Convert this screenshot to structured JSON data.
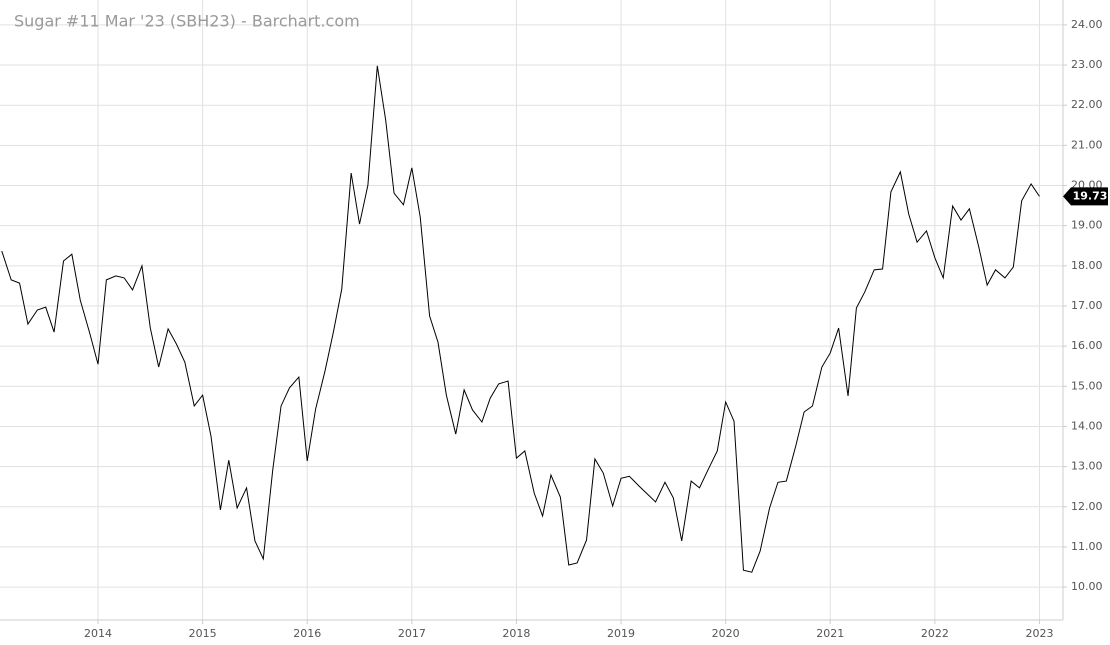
{
  "chart_data": {
    "type": "line",
    "title": "Sugar #11 Mar '23 (SBH23) - Barchart.com",
    "color": "#000000",
    "grid": true,
    "xlim": [
      2013.063,
      2023.225
    ],
    "ylim": [
      9.18,
      24.62
    ],
    "xticks": [
      2014,
      2015,
      2016,
      2017,
      2018,
      2019,
      2020,
      2021,
      2022,
      2023
    ],
    "yticks": [
      {
        "value": 10,
        "label": "10.00"
      },
      {
        "value": 11,
        "label": "11.00"
      },
      {
        "value": 12,
        "label": "12.00"
      },
      {
        "value": 13,
        "label": "13.00"
      },
      {
        "value": 14,
        "label": "14.00"
      },
      {
        "value": 15,
        "label": "15.00"
      },
      {
        "value": 16,
        "label": "16.00"
      },
      {
        "value": 17,
        "label": "17.00"
      },
      {
        "value": 18,
        "label": "18.00"
      },
      {
        "value": 19,
        "label": "19.00"
      },
      {
        "value": 20,
        "label": "20.00"
      },
      {
        "value": 21,
        "label": "21.00"
      },
      {
        "value": 22,
        "label": "22.00"
      },
      {
        "value": 23,
        "label": "23.00"
      },
      {
        "value": 24,
        "label": "24.00"
      }
    ],
    "x": [
      2013.08,
      2013.17,
      2013.25,
      2013.33,
      2013.42,
      2013.5,
      2013.58,
      2013.67,
      2013.75,
      2013.83,
      2013.92,
      2014,
      2014.08,
      2014.17,
      2014.25,
      2014.33,
      2014.42,
      2014.5,
      2014.58,
      2014.67,
      2014.75,
      2014.83,
      2014.92,
      2015,
      2015.08,
      2015.17,
      2015.25,
      2015.33,
      2015.42,
      2015.5,
      2015.58,
      2015.67,
      2015.75,
      2015.83,
      2015.92,
      2016,
      2016.08,
      2016.17,
      2016.25,
      2016.33,
      2016.42,
      2016.5,
      2016.58,
      2016.67,
      2016.75,
      2016.83,
      2016.92,
      2017,
      2017.08,
      2017.17,
      2017.25,
      2017.33,
      2017.42,
      2017.5,
      2017.58,
      2017.67,
      2017.75,
      2017.83,
      2017.92,
      2018,
      2018.08,
      2018.17,
      2018.25,
      2018.33,
      2018.42,
      2018.5,
      2018.58,
      2018.67,
      2018.75,
      2018.83,
      2018.92,
      2019,
      2019.08,
      2019.17,
      2019.25,
      2019.33,
      2019.42,
      2019.5,
      2019.58,
      2019.67,
      2019.75,
      2019.83,
      2019.92,
      2020,
      2020.08,
      2020.17,
      2020.25,
      2020.33,
      2020.42,
      2020.5,
      2020.58,
      2020.67,
      2020.75,
      2020.83,
      2020.92,
      2021,
      2021.08,
      2021.17,
      2021.25,
      2021.33,
      2021.42,
      2021.5,
      2021.58,
      2021.67,
      2021.75,
      2021.83,
      2021.92,
      2022,
      2022.08,
      2022.17,
      2022.25,
      2022.33,
      2022.42,
      2022.5,
      2022.58,
      2022.67,
      2022.75,
      2022.83,
      2022.92,
      2023
    ],
    "values": [
      18.37,
      17.65,
      17.57,
      16.55,
      16.9,
      16.97,
      16.35,
      18.12,
      18.29,
      17.15,
      16.33,
      15.55,
      17.65,
      17.75,
      17.7,
      17.4,
      18.0,
      16.45,
      15.48,
      16.43,
      16.05,
      15.6,
      14.51,
      14.78,
      13.76,
      11.92,
      13.16,
      11.97,
      12.47,
      11.15,
      10.7,
      12.91,
      14.51,
      14.96,
      15.23,
      13.14,
      14.43,
      15.38,
      16.35,
      17.42,
      20.31,
      19.04,
      20.01,
      22.98,
      21.63,
      19.81,
      19.52,
      20.44,
      19.22,
      16.75,
      16.1,
      14.78,
      13.81,
      14.91,
      14.41,
      14.11,
      14.71,
      15.06,
      15.13,
      13.21,
      13.39,
      12.34,
      11.77,
      12.79,
      12.24,
      10.55,
      10.6,
      11.17,
      13.19,
      12.84,
      12.02,
      12.71,
      12.76,
      12.52,
      12.32,
      12.12,
      12.61,
      12.22,
      11.15,
      12.64,
      12.47,
      12.91,
      13.39,
      14.61,
      14.13,
      10.42,
      10.37,
      10.9,
      11.97,
      12.61,
      12.64,
      13.51,
      14.36,
      14.51,
      15.48,
      15.83,
      16.45,
      14.76,
      16.95,
      17.35,
      17.9,
      17.92,
      19.84,
      20.34,
      19.29,
      18.59,
      18.87,
      18.2,
      17.7,
      19.49,
      19.14,
      19.42,
      18.47,
      17.52,
      17.9,
      17.7,
      17.97,
      19.62,
      20.04,
      19.73
    ]
  }
}
